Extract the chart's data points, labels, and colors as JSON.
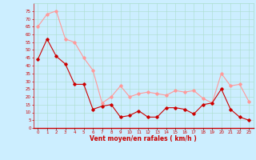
{
  "hours": [
    0,
    1,
    2,
    3,
    4,
    5,
    6,
    7,
    8,
    9,
    10,
    11,
    12,
    13,
    14,
    15,
    16,
    17,
    18,
    19,
    20,
    21,
    22,
    23
  ],
  "wind_avg": [
    44,
    57,
    46,
    41,
    28,
    28,
    12,
    14,
    15,
    7,
    8,
    11,
    7,
    7,
    13,
    13,
    12,
    9,
    15,
    16,
    25,
    12,
    7,
    5
  ],
  "wind_gust": [
    65,
    73,
    75,
    57,
    55,
    45,
    37,
    16,
    20,
    27,
    20,
    22,
    23,
    22,
    21,
    24,
    23,
    24,
    19,
    16,
    35,
    27,
    28,
    17
  ],
  "color_avg": "#cc0000",
  "color_gust": "#ff9999",
  "bg_color": "#cceeff",
  "grid_color": "#aaddcc",
  "xlabel": "Vent moyen/en rafales ( km/h )",
  "xlabel_color": "#cc0000",
  "tick_color": "#cc0000",
  "ylim": [
    0,
    80
  ],
  "yticks": [
    0,
    5,
    10,
    15,
    20,
    25,
    30,
    35,
    40,
    45,
    50,
    55,
    60,
    65,
    70,
    75
  ]
}
